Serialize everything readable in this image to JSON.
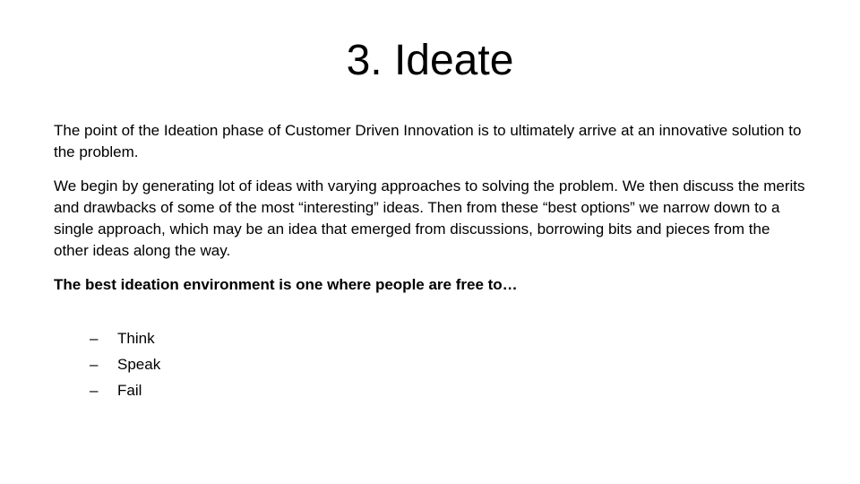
{
  "slide": {
    "title": "3. Ideate",
    "paragraphs": [
      "The point of the Ideation phase of Customer Driven Innovation is to ultimately arrive at an innovative solution to the problem.",
      "We begin by generating lot of ideas with varying approaches to solving the problem.  We then discuss the merits and drawbacks of some of the most “interesting” ideas.  Then from these “best options” we narrow down to a single approach, which may be an idea that emerged from discussions, borrowing bits and pieces from the other ideas along the way."
    ],
    "emphasis": "The best ideation environment is one where people are free to…",
    "bullet_marker": "–",
    "bullets": [
      "Think",
      "Speak",
      "Fail"
    ]
  }
}
